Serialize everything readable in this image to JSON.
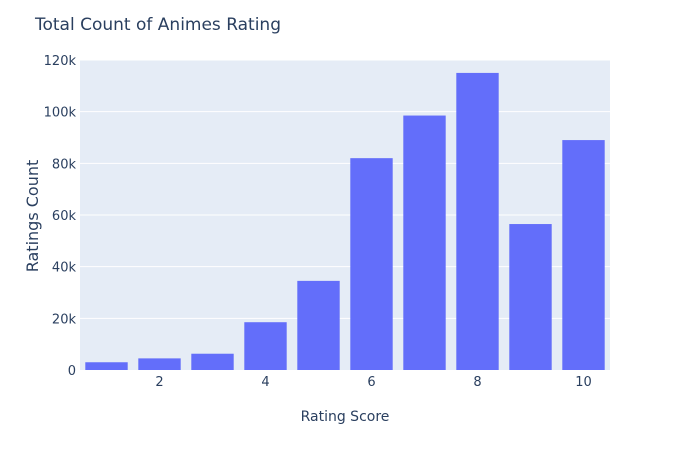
{
  "chart_data": {
    "type": "bar",
    "title": "Total Count of Animes Rating",
    "xlabel": "Rating Score",
    "ylabel": "Ratings Count",
    "x": [
      1,
      2,
      3,
      4,
      5,
      6,
      7,
      8,
      9,
      10
    ],
    "values": [
      3000,
      4500,
      6300,
      18500,
      34500,
      82000,
      98500,
      115000,
      56500,
      89000
    ],
    "xlim": [
      0.5,
      10.5
    ],
    "ylim": [
      0,
      120000
    ],
    "x_ticks": [
      2,
      4,
      6,
      8,
      10
    ],
    "x_tick_labels": [
      "2",
      "4",
      "6",
      "8",
      "10"
    ],
    "y_ticks": [
      0,
      20000,
      40000,
      60000,
      80000,
      100000,
      120000
    ],
    "y_tick_labels": [
      "0",
      "20k",
      "40k",
      "60k",
      "80k",
      "100k",
      "120k"
    ],
    "grid": true,
    "legend": "none"
  },
  "colors": {
    "bar": "#636efa",
    "plot_bg": "#e5ecf6",
    "grid": "#ffffff",
    "text": "#2a3f5f"
  }
}
